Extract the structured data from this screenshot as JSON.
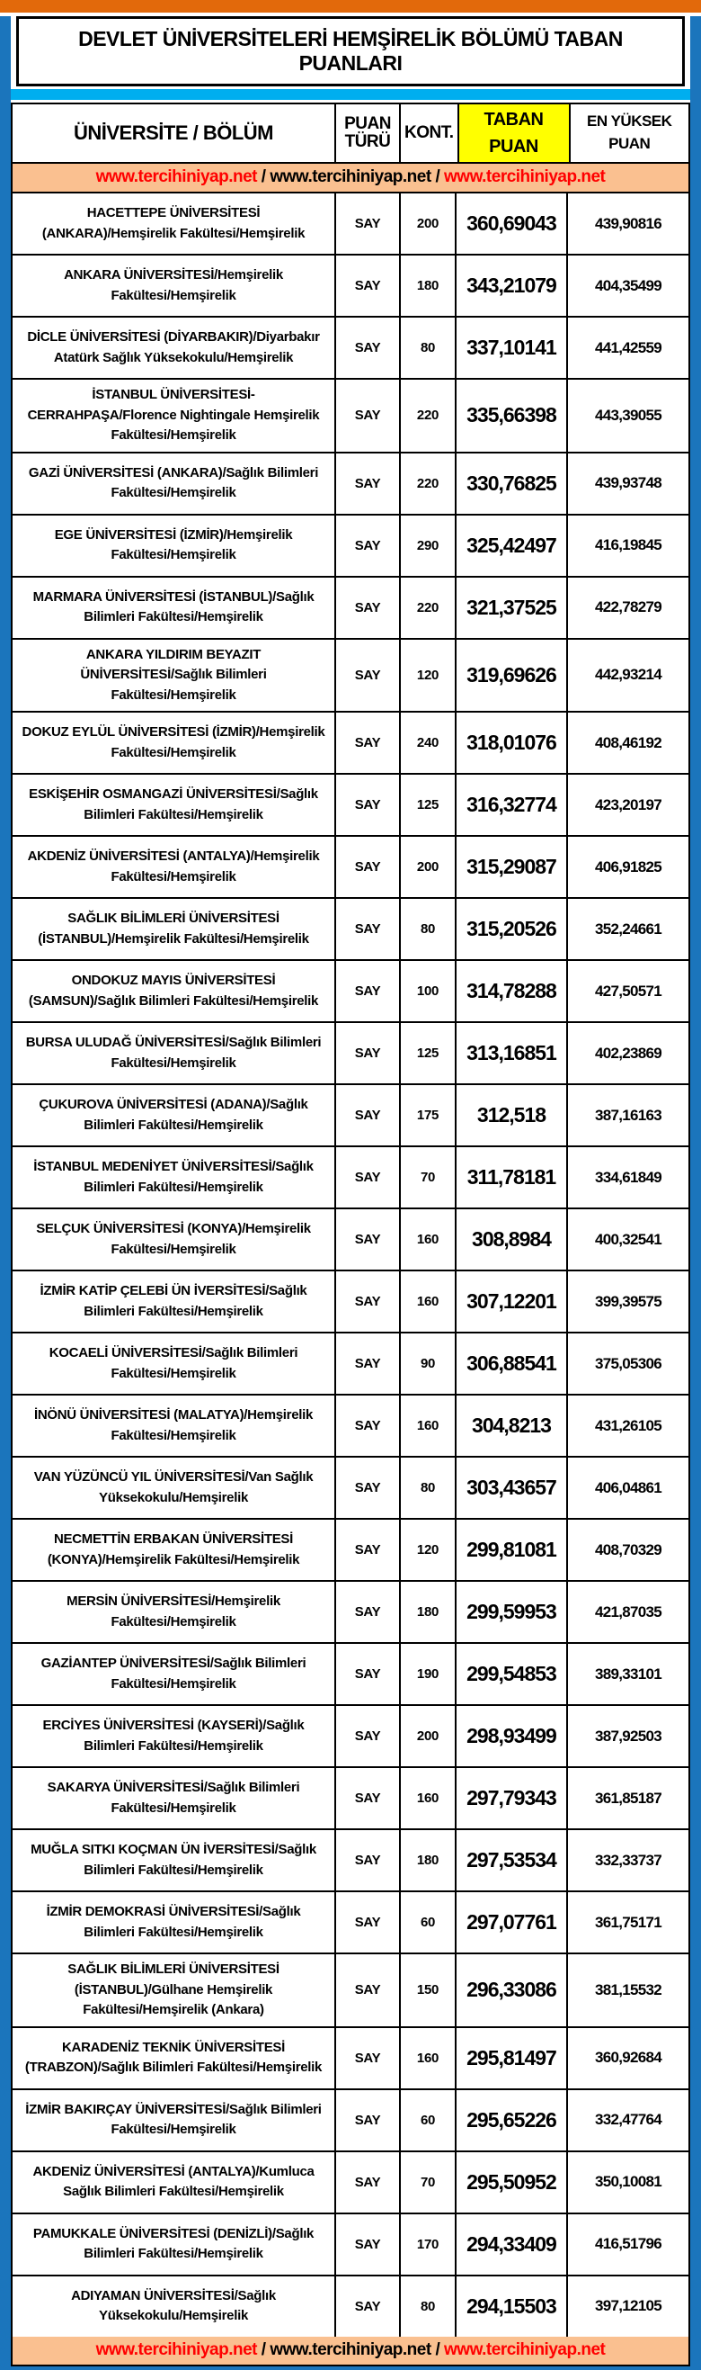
{
  "title": "DEVLET ÜNİVERSİTELERİ HEMŞİRELİK BÖLÜMÜ TABAN PUANLARI",
  "columns": {
    "university": "ÜNİVERSİTE / BÖLÜM",
    "score_type": "PUAN TÜRÜ",
    "quota": "KONT.",
    "base_score": "TABAN PUAN",
    "highest_score": "EN YÜKSEK PUAN"
  },
  "url_bar": {
    "link1": "www.tercihiniyap.net",
    "sep1": " / ",
    "link2": "www.tercihiniyap.net",
    "sep2": " / ",
    "link3": "www.tercihiniyap.net"
  },
  "colors": {
    "top_bar_orange": "#E2690B",
    "frame_blue": "#1B75BC",
    "divider_cyan": "#00AEEF",
    "highlight_yellow": "#FFFF00",
    "url_bar_peach": "#FAC090",
    "link_red": "#FF0000"
  },
  "rows": [
    {
      "university": "HACETTEPE ÜNİVERSİTESİ (ANKARA)/Hemşirelik Fakültesi/Hemşirelik",
      "score_type": "SAY",
      "quota": "200",
      "base_score": "360,69043",
      "highest_score": "439,90816"
    },
    {
      "university": "ANKARA ÜNİVERSİTESİ/Hemşirelik Fakültesi/Hemşirelik",
      "score_type": "SAY",
      "quota": "180",
      "base_score": "343,21079",
      "highest_score": "404,35499"
    },
    {
      "university": "DİCLE ÜNİVERSİTESİ (DİYARBAKIR)/Diyarbakır Atatürk Sağlık Yüksekokulu/Hemşirelik",
      "score_type": "SAY",
      "quota": "80",
      "base_score": "337,10141",
      "highest_score": "441,42559"
    },
    {
      "university": "İSTANBUL ÜNİVERSİTESİ-CERRAHPAŞA/Florence Nightingale Hemşirelik Fakültesi/Hemşirelik",
      "score_type": "SAY",
      "quota": "220",
      "base_score": "335,66398",
      "highest_score": "443,39055"
    },
    {
      "university": "GAZİ ÜNİVERSİTESİ (ANKARA)/Sağlık Bilimleri Fakültesi/Hemşirelik",
      "score_type": "SAY",
      "quota": "220",
      "base_score": "330,76825",
      "highest_score": "439,93748"
    },
    {
      "university": "EGE ÜNİVERSİTESİ (İZMİR)/Hemşirelik Fakültesi/Hemşirelik",
      "score_type": "SAY",
      "quota": "290",
      "base_score": "325,42497",
      "highest_score": "416,19845"
    },
    {
      "university": "MARMARA ÜNİVERSİTESİ (İSTANBUL)/Sağlık Bilimleri Fakültesi/Hemşirelik",
      "score_type": "SAY",
      "quota": "220",
      "base_score": "321,37525",
      "highest_score": "422,78279"
    },
    {
      "university": "ANKARA YILDIRIM BEYAZIT ÜNİVERSİTESİ/Sağlık Bilimleri Fakültesi/Hemşirelik",
      "score_type": "SAY",
      "quota": "120",
      "base_score": "319,69626",
      "highest_score": "442,93214"
    },
    {
      "university": "DOKUZ EYLÜL ÜNİVERSİTESİ (İZMİR)/Hemşirelik Fakültesi/Hemşirelik",
      "score_type": "SAY",
      "quota": "240",
      "base_score": "318,01076",
      "highest_score": "408,46192"
    },
    {
      "university": "ESKİŞEHİR OSMANGAZİ ÜNİVERSİTESİ/Sağlık Bilimleri Fakültesi/Hemşirelik",
      "score_type": "SAY",
      "quota": "125",
      "base_score": "316,32774",
      "highest_score": "423,20197"
    },
    {
      "university": "AKDENİZ ÜNİVERSİTESİ (ANTALYA)/Hemşirelik Fakültesi/Hemşirelik",
      "score_type": "SAY",
      "quota": "200",
      "base_score": "315,29087",
      "highest_score": "406,91825"
    },
    {
      "university": "SAĞLIK BİLİMLERİ ÜNİVERSİTESİ (İSTANBUL)/Hemşirelik Fakültesi/Hemşirelik",
      "score_type": "SAY",
      "quota": "80",
      "base_score": "315,20526",
      "highest_score": "352,24661"
    },
    {
      "university": "ONDOKUZ MAYIS ÜNİVERSİTESİ (SAMSUN)/Sağlık Bilimleri Fakültesi/Hemşirelik",
      "score_type": "SAY",
      "quota": "100",
      "base_score": "314,78288",
      "highest_score": "427,50571"
    },
    {
      "university": "BURSA ULUDAĞ ÜNİVERSİTESİ/Sağlık Bilimleri Fakültesi/Hemşirelik",
      "score_type": "SAY",
      "quota": "125",
      "base_score": "313,16851",
      "highest_score": "402,23869"
    },
    {
      "university": "ÇUKUROVA ÜNİVERSİTESİ (ADANA)/Sağlık Bilimleri Fakültesi/Hemşirelik",
      "score_type": "SAY",
      "quota": "175",
      "base_score": "312,518",
      "highest_score": "387,16163"
    },
    {
      "university": "İSTANBUL MEDENİYET ÜNİVERSİTESİ/Sağlık Bilimleri Fakültesi/Hemşirelik",
      "score_type": "SAY",
      "quota": "70",
      "base_score": "311,78181",
      "highest_score": "334,61849"
    },
    {
      "university": "SELÇUK ÜNİVERSİTESİ (KONYA)/Hemşirelik Fakültesi/Hemşirelik",
      "score_type": "SAY",
      "quota": "160",
      "base_score": "308,8984",
      "highest_score": "400,32541"
    },
    {
      "university": "İZMİR KATİP ÇELEBİ ÜN İVERSİTESİ/Sağlık Bilimleri Fakültesi/Hemşirelik",
      "score_type": "SAY",
      "quota": "160",
      "base_score": "307,12201",
      "highest_score": "399,39575"
    },
    {
      "university": "KOCAELİ ÜNİVERSİTESİ/Sağlık Bilimleri Fakültesi/Hemşirelik",
      "score_type": "SAY",
      "quota": "90",
      "base_score": "306,88541",
      "highest_score": "375,05306"
    },
    {
      "university": "İNÖNÜ ÜNİVERSİTESİ (MALATYA)/Hemşirelik Fakültesi/Hemşirelik",
      "score_type": "SAY",
      "quota": "160",
      "base_score": "304,8213",
      "highest_score": "431,26105"
    },
    {
      "university": "VAN YÜZÜNCÜ YIL ÜNİVERSİTESİ/Van Sağlık Yüksekokulu/Hemşirelik",
      "score_type": "SAY",
      "quota": "80",
      "base_score": "303,43657",
      "highest_score": "406,04861"
    },
    {
      "university": "NECMETTİN ERBAKAN ÜNİVERSİTESİ (KONYA)/Hemşirelik Fakültesi/Hemşirelik",
      "score_type": "SAY",
      "quota": "120",
      "base_score": "299,81081",
      "highest_score": "408,70329"
    },
    {
      "university": "MERSİN ÜNİVERSİTESİ/Hemşirelik Fakültesi/Hemşirelik",
      "score_type": "SAY",
      "quota": "180",
      "base_score": "299,59953",
      "highest_score": "421,87035"
    },
    {
      "university": "GAZİANTEP ÜNİVERSİTESİ/Sağlık Bilimleri Fakültesi/Hemşirelik",
      "score_type": "SAY",
      "quota": "190",
      "base_score": "299,54853",
      "highest_score": "389,33101"
    },
    {
      "university": "ERCİYES ÜNİVERSİTESİ (KAYSERİ)/Sağlık Bilimleri Fakültesi/Hemşirelik",
      "score_type": "SAY",
      "quota": "200",
      "base_score": "298,93499",
      "highest_score": "387,92503"
    },
    {
      "university": "SAKARYA ÜNİVERSİTESİ/Sağlık Bilimleri Fakültesi/Hemşirelik",
      "score_type": "SAY",
      "quota": "160",
      "base_score": "297,79343",
      "highest_score": "361,85187"
    },
    {
      "university": "MUĞLA SITKI KOÇMAN ÜN İVERSİTESİ/Sağlık Bilimleri Fakültesi/Hemşirelik",
      "score_type": "SAY",
      "quota": "180",
      "base_score": "297,53534",
      "highest_score": "332,33737"
    },
    {
      "university": "İZMİR DEMOKRASİ ÜNİVERSİTESİ/Sağlık Bilimleri Fakültesi/Hemşirelik",
      "score_type": "SAY",
      "quota": "60",
      "base_score": "297,07761",
      "highest_score": "361,75171"
    },
    {
      "university": "SAĞLIK BİLİMLERİ ÜNİVERSİTESİ (İSTANBUL)/Gülhane Hemşirelik Fakültesi/Hemşirelik (Ankara)",
      "score_type": "SAY",
      "quota": "150",
      "base_score": "296,33086",
      "highest_score": "381,15532"
    },
    {
      "university": "KARADENİZ TEKNİK ÜNİVERSİTESİ (TRABZON)/Sağlık Bilimleri Fakültesi/Hemşirelik",
      "score_type": "SAY",
      "quota": "160",
      "base_score": "295,81497",
      "highest_score": "360,92684"
    },
    {
      "university": "İZMİR BAKIRÇAY ÜNİVERSİTESİ/Sağlık Bilimleri Fakültesi/Hemşirelik",
      "score_type": "SAY",
      "quota": "60",
      "base_score": "295,65226",
      "highest_score": "332,47764"
    },
    {
      "university": "AKDENİZ ÜNİVERSİTESİ (ANTALYA)/Kumluca Sağlık Bilimleri Fakültesi/Hemşirelik",
      "score_type": "SAY",
      "quota": "70",
      "base_score": "295,50952",
      "highest_score": "350,10081"
    },
    {
      "university": "PAMUKKALE ÜNİVERSİTESİ (DENİZLİ)/Sağlık Bilimleri Fakültesi/Hemşirelik",
      "score_type": "SAY",
      "quota": "170",
      "base_score": "294,33409",
      "highest_score": "416,51796"
    },
    {
      "university": "ADIYAMAN ÜNİVERSİTESİ/Sağlık Yüksekokulu/Hemşirelik",
      "score_type": "SAY",
      "quota": "80",
      "base_score": "294,15503",
      "highest_score": "397,12105"
    }
  ]
}
